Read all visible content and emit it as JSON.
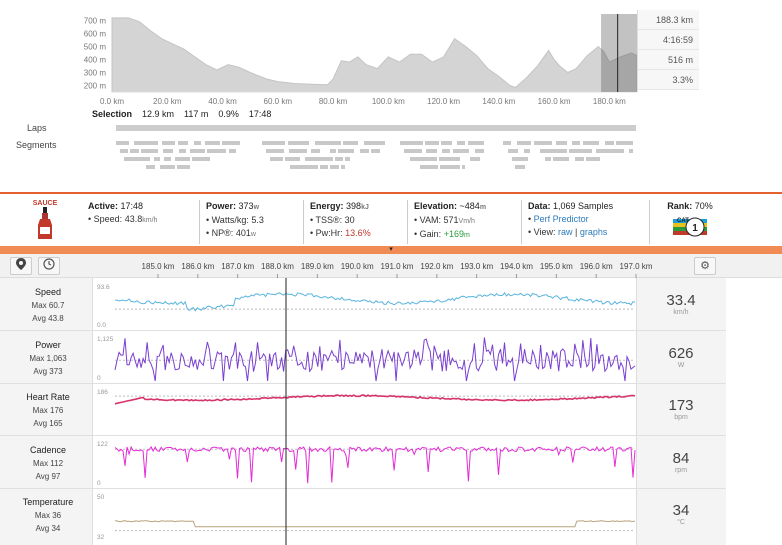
{
  "elevation": {
    "y_ticks": [
      "700 m",
      "600 m",
      "500 m",
      "400 m",
      "300 m",
      "200 m"
    ],
    "x_ticks": [
      "0.0 km",
      "20.0 km",
      "40.0 km",
      "60.0 km",
      "80.0 km",
      "100.0 km",
      "120.0 km",
      "140.0 km",
      "160.0 km",
      "180.0 km"
    ],
    "profile": [
      [
        0,
        720
      ],
      [
        6,
        720
      ],
      [
        10,
        690
      ],
      [
        14,
        620
      ],
      [
        18,
        560
      ],
      [
        22,
        520
      ],
      [
        26,
        480
      ],
      [
        30,
        420
      ],
      [
        34,
        360
      ],
      [
        38,
        320
      ],
      [
        42,
        360
      ],
      [
        46,
        340
      ],
      [
        50,
        300
      ],
      [
        56,
        250
      ],
      [
        60,
        230
      ],
      [
        66,
        215
      ],
      [
        72,
        210
      ],
      [
        78,
        205
      ],
      [
        80,
        250
      ],
      [
        83,
        390
      ],
      [
        86,
        380
      ],
      [
        89,
        420
      ],
      [
        92,
        360
      ],
      [
        96,
        330
      ],
      [
        100,
        420
      ],
      [
        104,
        380
      ],
      [
        108,
        440
      ],
      [
        112,
        440
      ],
      [
        116,
        380
      ],
      [
        120,
        420
      ],
      [
        124,
        560
      ],
      [
        128,
        500
      ],
      [
        132,
        430
      ],
      [
        136,
        330
      ],
      [
        140,
        270
      ],
      [
        144,
        200
      ],
      [
        146,
        185
      ],
      [
        150,
        260
      ],
      [
        154,
        350
      ],
      [
        158,
        470
      ],
      [
        160,
        400
      ],
      [
        162,
        350
      ],
      [
        165,
        300
      ],
      [
        168,
        330
      ],
      [
        172,
        430
      ],
      [
        176,
        500
      ],
      [
        178,
        460
      ],
      [
        180,
        380
      ],
      [
        184,
        420
      ],
      [
        188,
        450
      ],
      [
        190,
        430
      ]
    ],
    "side_stats": [
      "188.3 km",
      "4:16:59",
      "516 m",
      "3.3%"
    ],
    "selection": {
      "label": "Selection",
      "distance": "12.9 km",
      "climb": "117 m",
      "grade": "0.9%",
      "time": "17:48"
    },
    "laps_label": "Laps",
    "segments_label": "Segments"
  },
  "sauce": {
    "logo_text": "SAUCE",
    "active": {
      "label": "Active:",
      "value": "17:48",
      "speed_label": "• Speed:",
      "speed": "43.8",
      "speed_unit": "km/h"
    },
    "power": {
      "label": "Power:",
      "value": "373",
      "unit": "w",
      "wkg_label": "• Watts/kg:",
      "wkg": "5.3",
      "np_label": "• NP®:",
      "np": "401",
      "np_unit": "w"
    },
    "energy": {
      "label": "Energy:",
      "value": "398",
      "unit": "kJ",
      "tss_label": "• TSS®:",
      "tss": "30",
      "pwhr_label": "• Pw:Hr:",
      "pwhr": "13.6%"
    },
    "elevation": {
      "label": "Elevation:",
      "value": "~484",
      "unit": "m",
      "vam_label": "• VAM:",
      "vam": "571",
      "vam_unit": "Vm/h",
      "gain_label": "• Gain:",
      "gain": "+169",
      "gain_unit": "m"
    },
    "data": {
      "label": "Data:",
      "value": "1,069 Samples",
      "perf_link": "Perf Predictor",
      "view_label": "• View:",
      "raw_link": "raw",
      "sep": "|",
      "graphs_link": "graphs"
    },
    "rank": {
      "label": "Rank:",
      "value": "70%",
      "badge": "CAT 1"
    }
  },
  "toolbar": {
    "km_ticks": [
      "185.0 km",
      "186.0 km",
      "187.0 km",
      "188.0 km",
      "189.0 km",
      "190.0 km",
      "191.0 km",
      "192.0 km",
      "193.0 km",
      "194.0 km",
      "195.0 km",
      "196.0 km",
      "197.0 km"
    ]
  },
  "streams": [
    {
      "name": "Speed",
      "max": "Max 60.7",
      "avg": "Avg 43.8",
      "value": "33.4",
      "unit": "km/h",
      "ymax": "93.6",
      "ymin": "0.0",
      "color": "#5ab4de"
    },
    {
      "name": "Power",
      "max": "Max 1,063",
      "avg": "Avg 373",
      "value": "626",
      "unit": "W",
      "ymax": "1,125",
      "ymin": "0",
      "color": "#7a3fd1"
    },
    {
      "name": "Heart Rate",
      "max": "Max 176",
      "avg": "Avg 165",
      "value": "173",
      "unit": "bpm",
      "ymax": "186",
      "ymin": "",
      "color": "#d6336c"
    },
    {
      "name": "Cadence",
      "max": "Max 112",
      "avg": "Avg 97",
      "value": "84",
      "unit": "rpm",
      "ymax": "122",
      "ymin": "0",
      "color": "#e52bd6"
    },
    {
      "name": "Temperature",
      "max": "Max 36",
      "avg": "Avg 34",
      "value": "34",
      "unit": "°C",
      "ymax": "50",
      "ymin": "32",
      "color": "#b8a27a"
    }
  ]
}
